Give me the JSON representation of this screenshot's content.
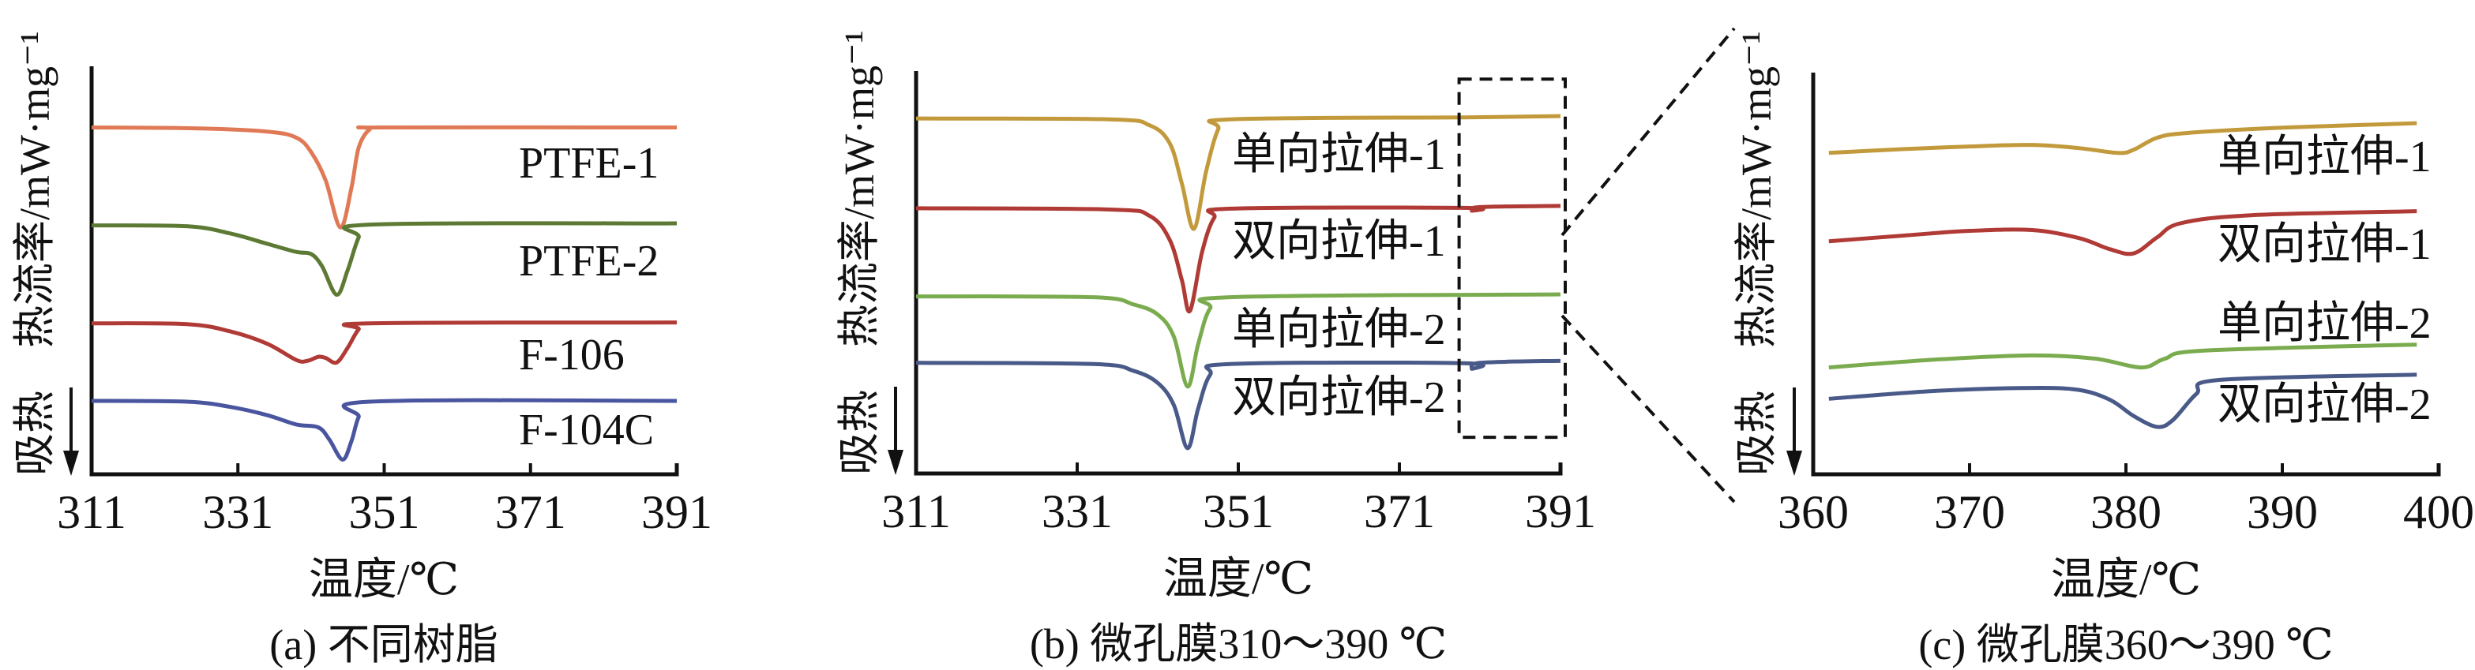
{
  "chart_data": [
    {
      "type": "line",
      "caption": "(a) 不同树脂",
      "xlabel": "温度/℃",
      "ylabel": "热流率/mW·mg⁻¹",
      "endo_label": "吸热",
      "xlim": [
        311,
        391
      ],
      "ylim": [
        0,
        100
      ],
      "y_units": "relative",
      "xticks": [
        "311",
        "331",
        "351",
        "371",
        "391"
      ],
      "series": [
        {
          "name": "PTFE-1",
          "color": "#e07a56",
          "points": [
            [
              311,
              85
            ],
            [
              325,
              84.8
            ],
            [
              335,
              84
            ],
            [
              339,
              82.5
            ],
            [
              341,
              79
            ],
            [
              343,
              72
            ],
            [
              345,
              60.5
            ],
            [
              346.5,
              70
            ],
            [
              347.5,
              80
            ],
            [
              349,
              84.5
            ],
            [
              351,
              85
            ],
            [
              391,
              85
            ]
          ]
        },
        {
          "name": "PTFE-2",
          "color": "#5d7a35",
          "points": [
            [
              311,
              61
            ],
            [
              324,
              60.8
            ],
            [
              330,
              59
            ],
            [
              335,
              56.5
            ],
            [
              339,
              54.5
            ],
            [
              341,
              54
            ],
            [
              342.5,
              51
            ],
            [
              344.5,
              44
            ],
            [
              346,
              50
            ],
            [
              347.5,
              58
            ],
            [
              349,
              61.2
            ],
            [
              391,
              61.5
            ]
          ]
        },
        {
          "name": "F-106",
          "color": "#b03a35",
          "points": [
            [
              311,
              37
            ],
            [
              324,
              36.8
            ],
            [
              330,
              35
            ],
            [
              335,
              32
            ],
            [
              339,
              28
            ],
            [
              340.5,
              27.8
            ],
            [
              342,
              28.8
            ],
            [
              343,
              28.5
            ],
            [
              344.5,
              27.4
            ],
            [
              346,
              31
            ],
            [
              347.5,
              35.5
            ],
            [
              349,
              37
            ],
            [
              391,
              37.2
            ]
          ]
        },
        {
          "name": "F-104C",
          "color": "#4a55a0",
          "points": [
            [
              311,
              18
            ],
            [
              324,
              17.8
            ],
            [
              330,
              16.5
            ],
            [
              335,
              14.5
            ],
            [
              339,
              12.2
            ],
            [
              342,
              11.5
            ],
            [
              343.5,
              8.5
            ],
            [
              345.3,
              3.6
            ],
            [
              346.5,
              8
            ],
            [
              347.5,
              14
            ],
            [
              349,
              17.8
            ],
            [
              391,
              18
            ]
          ]
        }
      ]
    },
    {
      "type": "line",
      "caption": "(b) 微孔膜310～390 ℃",
      "xlabel": "温度/℃",
      "ylabel": "热流率/mW·mg⁻¹",
      "endo_label": "吸热",
      "xlim": [
        311,
        391
      ],
      "ylim": [
        0,
        100
      ],
      "y_units": "relative",
      "xticks": [
        "311",
        "331",
        "351",
        "371",
        "391"
      ],
      "zoom_region": {
        "x": [
          379,
          391
        ],
        "y": [
          9,
          98
        ]
      },
      "series": [
        {
          "name": "单向拉伸-1",
          "color": "#c29a3c",
          "points": [
            [
              311,
              88.2
            ],
            [
              335,
              88
            ],
            [
              340,
              86.5
            ],
            [
              342.5,
              82
            ],
            [
              344,
              72
            ],
            [
              345.5,
              60.8
            ],
            [
              347,
              75
            ],
            [
              348.5,
              85.5
            ],
            [
              350,
              88
            ],
            [
              380,
              88.5
            ],
            [
              391,
              88.8
            ]
          ]
        },
        {
          "name": "双向拉伸-1",
          "color": "#b03a35",
          "points": [
            [
              311,
              65.9
            ],
            [
              335,
              65.6
            ],
            [
              340,
              64
            ],
            [
              342.5,
              58
            ],
            [
              344,
              48
            ],
            [
              345,
              40.4
            ],
            [
              346.5,
              55
            ],
            [
              348,
              63.5
            ],
            [
              350,
              65.8
            ],
            [
              379,
              66
            ],
            [
              380,
              65.3
            ],
            [
              381,
              66.2
            ],
            [
              391,
              66.5
            ]
          ]
        },
        {
          "name": "单向拉伸-2",
          "color": "#7aac4f",
          "points": [
            [
              311,
              44
            ],
            [
              333,
              43.8
            ],
            [
              338,
              42
            ],
            [
              341,
              39.5
            ],
            [
              343,
              34
            ],
            [
              344.7,
              21.6
            ],
            [
              346,
              32
            ],
            [
              347.5,
              41
            ],
            [
              350,
              43.8
            ],
            [
              391,
              44.5
            ]
          ]
        },
        {
          "name": "双向拉伸-2",
          "color": "#4a5a88",
          "points": [
            [
              311,
              27.5
            ],
            [
              333,
              27.2
            ],
            [
              338,
              25.5
            ],
            [
              341,
              22.5
            ],
            [
              343,
              17
            ],
            [
              344.7,
              6.3
            ],
            [
              346,
              16
            ],
            [
              347.5,
              24.5
            ],
            [
              350,
              27.2
            ],
            [
              379,
              27.4
            ],
            [
              380,
              26
            ],
            [
              381,
              27.5
            ],
            [
              391,
              28
            ]
          ]
        }
      ]
    },
    {
      "type": "line",
      "caption": "(c) 微孔膜360～390 ℃",
      "xlabel": "温度/℃",
      "ylabel": "热流率/mW·mg⁻¹",
      "endo_label": "吸热",
      "xlim": [
        360,
        400
      ],
      "ylim": [
        0,
        100
      ],
      "y_units": "relative",
      "xticks": [
        "360",
        "370",
        "380",
        "390",
        "400"
      ],
      "series": [
        {
          "name": "单向拉伸-1",
          "color": "#c29a3c",
          "points": [
            [
              361,
              80
            ],
            [
              366,
              81
            ],
            [
              370,
              81.6
            ],
            [
              374,
              82
            ],
            [
              377,
              81.2
            ],
            [
              379.5,
              80
            ],
            [
              380.5,
              80.8
            ],
            [
              382,
              83.8
            ],
            [
              384,
              85
            ],
            [
              390,
              86.3
            ],
            [
              398.6,
              87.4
            ]
          ]
        },
        {
          "name": "双向拉伸-1",
          "color": "#b03a35",
          "points": [
            [
              361,
              58
            ],
            [
              366,
              59.5
            ],
            [
              370,
              60.6
            ],
            [
              374,
              60.8
            ],
            [
              377,
              58.8
            ],
            [
              379,
              56
            ],
            [
              380.5,
              55
            ],
            [
              382,
              59
            ],
            [
              383.5,
              62.5
            ],
            [
              388,
              64.5
            ],
            [
              398.6,
              65.5
            ]
          ]
        },
        {
          "name": "单向拉伸-2",
          "color": "#7aac4f",
          "points": [
            [
              361,
              26.6
            ],
            [
              368,
              28.6
            ],
            [
              374,
              29.6
            ],
            [
              378,
              28.8
            ],
            [
              381,
              26.6
            ],
            [
              382.5,
              28.8
            ],
            [
              385,
              30.8
            ],
            [
              398.6,
              32.3
            ]
          ]
        },
        {
          "name": "双向拉伸-2",
          "color": "#4a5a88",
          "points": [
            [
              361,
              18.8
            ],
            [
              368,
              20.8
            ],
            [
              374,
              21.5
            ],
            [
              377,
              21
            ],
            [
              379,
              18.5
            ],
            [
              380.5,
              14.5
            ],
            [
              382,
              11.8
            ],
            [
              383,
              13.5
            ],
            [
              384.5,
              20
            ],
            [
              386,
              23.5
            ],
            [
              398.6,
              24.8
            ]
          ]
        }
      ]
    }
  ]
}
